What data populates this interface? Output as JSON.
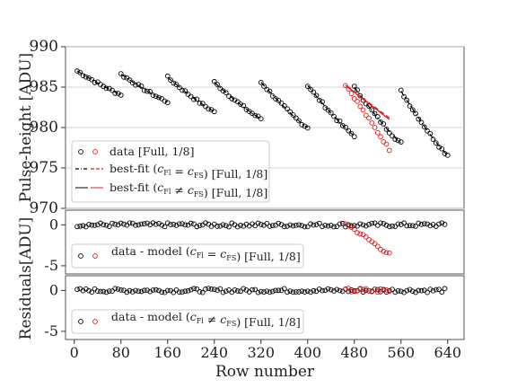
{
  "chart_data": [
    {
      "type": "scatter",
      "panel": "top",
      "ylabel": "Pulse-height [ADU]",
      "ylim": [
        970,
        990
      ],
      "yticks": [
        970,
        975,
        980,
        985,
        990
      ],
      "xlim": [
        -15,
        668
      ],
      "grid": true,
      "legend_position": "lower-left",
      "legend": [
        {
          "marks": [
            "black-circle",
            "red-circle"
          ],
          "label": "data [Full, 1/8]"
        },
        {
          "marks": [
            "black-dashdot",
            "red-dash"
          ],
          "label": "best-fit (c_Fl = c_FS) [Full, 1/8]",
          "label_main": "best-fit (",
          "label_c1": "c",
          "label_c1_sub": "Fl",
          "label_eq": " = ",
          "label_c2": "c",
          "label_c2_sub": "FS",
          "label_tail": ") [Full, 1/8]"
        },
        {
          "marks": [
            "black-line",
            "red-line"
          ],
          "label": "best-fit (c_Fl ≠ c_FS) [Full, 1/8]",
          "label_main": "best-fit (",
          "label_c1": "c",
          "label_c1_sub": "Fl",
          "label_eq": " ≠ ",
          "label_c2": "c",
          "label_c2_sub": "FS",
          "label_tail": ") [Full, 1/8]"
        }
      ],
      "series": [
        {
          "name": "data [Full, 1/8]",
          "color": "#000000",
          "marker": "open-circle",
          "segments": [
            {
              "x_start": 5,
              "x_end": 80,
              "y_start": 987.0,
              "y_end": 984.1
            },
            {
              "x_start": 80,
              "x_end": 160,
              "y_start": 986.6,
              "y_end": 983.2
            },
            {
              "x_start": 160,
              "x_end": 240,
              "y_start": 986.2,
              "y_end": 982.0
            },
            {
              "x_start": 240,
              "x_end": 320,
              "y_start": 985.6,
              "y_end": 981.1
            },
            {
              "x_start": 320,
              "x_end": 400,
              "y_start": 985.6,
              "y_end": 980.0
            },
            {
              "x_start": 400,
              "x_end": 480,
              "y_start": 985.2,
              "y_end": 979.0
            },
            {
              "x_start": 480,
              "x_end": 560,
              "y_start": 985.0,
              "y_end": 978.1
            },
            {
              "x_start": 560,
              "x_end": 640,
              "y_start": 984.5,
              "y_end": 976.6
            }
          ],
          "x_step": 5
        },
        {
          "name": "data [Full, 1/8] (red)",
          "color": "#e41a1c",
          "marker": "open-circle",
          "segment": {
            "x_start": 465,
            "x_end": 540,
            "y_start": 985.3,
            "y_end": 977.3
          },
          "x_step": 5
        }
      ],
      "fits": [
        {
          "name": "best-fit (c_Fl = c_FS) [Full, 1/8]",
          "color": "#000000",
          "style": "dashdot",
          "follows": "black segments"
        },
        {
          "name": "best-fit (c_Fl = c_FS) [Full, 1/8] (red)",
          "color": "#e41a1c",
          "style": "dash",
          "x": [
            465,
            540
          ],
          "y": [
            985.2,
            981.2
          ]
        },
        {
          "name": "best-fit (c_Fl ≠ c_FS) [Full, 1/8] (red)",
          "color": "#e41a1c",
          "style": "solid",
          "x": [
            465,
            540
          ],
          "y": [
            985.2,
            981.0
          ]
        }
      ]
    },
    {
      "type": "scatter",
      "panel": "middle",
      "ylim": [
        -6,
        1.8
      ],
      "yticks": [
        0,
        -5
      ],
      "legend": [
        {
          "marks": [
            "black-circle",
            "red-circle"
          ],
          "label": "data - model (c_Fl = c_FS) [Full, 1/8]",
          "label_main": "data - model (",
          "label_c1": "c",
          "label_c1_sub": "Fl",
          "label_eq": " = ",
          "label_c2": "c",
          "label_c2_sub": "FS",
          "label_tail": ") [Full, 1/8]"
        }
      ],
      "series": [
        {
          "name": "residual black",
          "color": "#000000",
          "x_range": [
            5,
            635
          ],
          "x_step": 5,
          "y_center": 0.0,
          "y_scatter": 0.25
        },
        {
          "name": "residual red",
          "color": "#e41a1c",
          "x_range": [
            465,
            540
          ],
          "x_step": 5,
          "y_start": 0.2,
          "y_end": -3.6
        }
      ]
    },
    {
      "type": "scatter",
      "panel": "bottom",
      "ylim": [
        -6,
        1.8
      ],
      "yticks": [
        0,
        -5
      ],
      "xlabel": "Row number",
      "xticks": [
        0,
        80,
        160,
        240,
        320,
        400,
        480,
        560,
        640
      ],
      "legend": [
        {
          "marks": [
            "black-circle",
            "red-circle"
          ],
          "label": "data - model (c_Fl ≠ c_FS) [Full, 1/8]",
          "label_main": "data - model (",
          "label_c1": "c",
          "label_c1_sub": "Fl",
          "label_eq": " ≠ ",
          "label_c2": "c",
          "label_c2_sub": "FS",
          "label_tail": ") [Full, 1/8]"
        }
      ],
      "series": [
        {
          "name": "residual black",
          "color": "#000000",
          "x_range": [
            5,
            635
          ],
          "x_step": 5,
          "y_center": 0.0,
          "y_scatter": 0.25
        },
        {
          "name": "residual red",
          "color": "#e41a1c",
          "x_range": [
            465,
            540
          ],
          "x_step": 5,
          "y_center": 0.0,
          "y_scatter": 0.3
        }
      ]
    }
  ],
  "shared_ylabel": "Residuals[ADU]"
}
